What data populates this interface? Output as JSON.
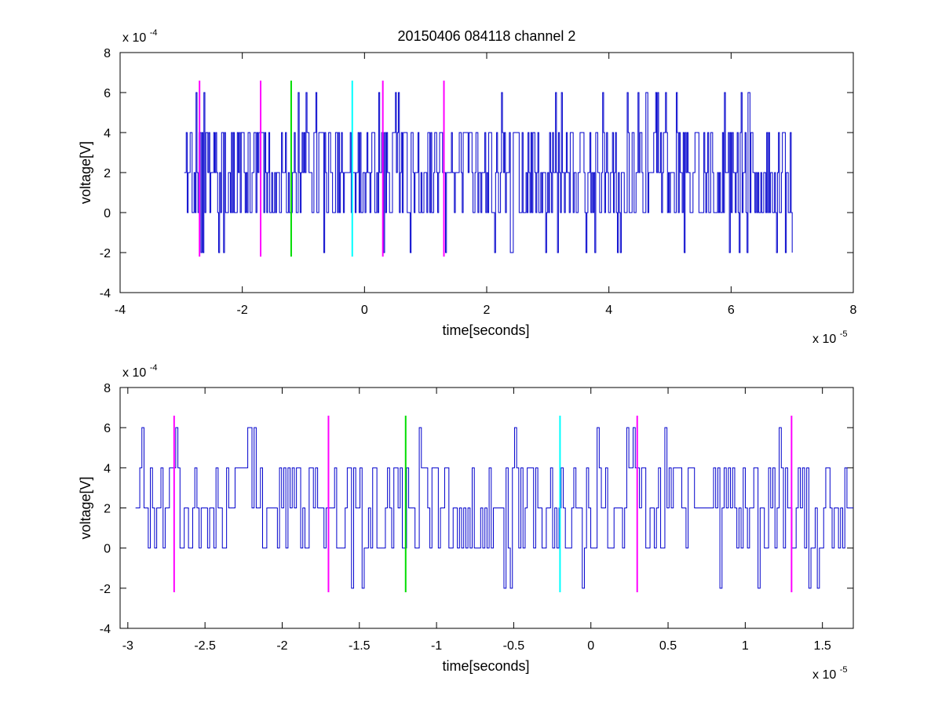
{
  "chart_data": [
    {
      "type": "line",
      "title": "20150406 084118 channel 2",
      "xlabel": "time[seconds]",
      "ylabel": "voltage[V]",
      "xlim": [
        -4,
        8
      ],
      "ylim": [
        -4,
        8
      ],
      "xticks": [
        -4,
        -2,
        0,
        2,
        4,
        6,
        8
      ],
      "xtick_labels": [
        "-4",
        "-2",
        "0",
        "2",
        "4",
        "6",
        "8"
      ],
      "yticks": [
        -4,
        -2,
        0,
        2,
        4,
        6,
        8
      ],
      "ytick_labels": [
        "-4",
        "-2",
        "0",
        "2",
        "4",
        "6",
        "8"
      ],
      "x_multiplier": "x 10",
      "x_exponent": "-5",
      "y_multiplier": "x 10",
      "y_exponent": "-4",
      "grid": false,
      "series": [
        {
          "color": "#0000cc",
          "x_range": [
            -2.95,
            7.0
          ],
          "levels": [
            -2,
            0,
            2,
            4,
            6
          ],
          "description_values": "step-wise quantized noise mostly oscillating between 0 and 4, occasional spikes to -2 and 6"
        }
      ],
      "markers": [
        {
          "x": -2.7,
          "color": "#ff00ff",
          "y_range": [
            -2.2,
            6.6
          ]
        },
        {
          "x": -1.7,
          "color": "#ff00ff",
          "y_range": [
            -2.2,
            6.6
          ]
        },
        {
          "x": -1.2,
          "color": "#00dd00",
          "y_range": [
            -2.2,
            6.6
          ]
        },
        {
          "x": -0.2,
          "color": "#00ffff",
          "y_range": [
            -2.2,
            6.6
          ]
        },
        {
          "x": 0.3,
          "color": "#ff00ff",
          "y_range": [
            -2.2,
            6.6
          ]
        },
        {
          "x": 1.3,
          "color": "#ff00ff",
          "y_range": [
            -2.2,
            6.6
          ]
        }
      ]
    },
    {
      "type": "line",
      "title": "",
      "xlabel": "time[seconds]",
      "ylabel": "voltage[V]",
      "xlim": [
        -3.05,
        1.7
      ],
      "ylim": [
        -4,
        8
      ],
      "xticks": [
        -3,
        -2.5,
        -2,
        -1.5,
        -1,
        -0.5,
        0,
        0.5,
        1,
        1.5
      ],
      "xtick_labels": [
        "-3",
        "-2.5",
        "-2",
        "-1.5",
        "-1",
        "-0.5",
        "0",
        "0.5",
        "1",
        "1.5"
      ],
      "yticks": [
        -4,
        -2,
        0,
        2,
        4,
        6,
        8
      ],
      "ytick_labels": [
        "-4",
        "-2",
        "0",
        "2",
        "4",
        "6",
        "8"
      ],
      "x_multiplier": "x 10",
      "x_exponent": "-5",
      "y_multiplier": "x 10",
      "y_exponent": "-4",
      "grid": false,
      "series": [
        {
          "color": "#0000cc",
          "x_range": [
            -2.95,
            1.7
          ],
          "levels": [
            -2,
            0,
            2,
            4,
            6
          ]
        }
      ],
      "markers": [
        {
          "x": -2.7,
          "color": "#ff00ff",
          "y_range": [
            -2.2,
            6.6
          ]
        },
        {
          "x": -1.7,
          "color": "#ff00ff",
          "y_range": [
            -2.2,
            6.6
          ]
        },
        {
          "x": -1.2,
          "color": "#00dd00",
          "y_range": [
            -2.2,
            6.6
          ]
        },
        {
          "x": -0.2,
          "color": "#00ffff",
          "y_range": [
            -2.2,
            6.6
          ]
        },
        {
          "x": 0.3,
          "color": "#ff00ff",
          "y_range": [
            -2.2,
            6.6
          ]
        },
        {
          "x": 1.3,
          "color": "#ff00ff",
          "y_range": [
            -2.2,
            6.6
          ]
        }
      ]
    }
  ]
}
